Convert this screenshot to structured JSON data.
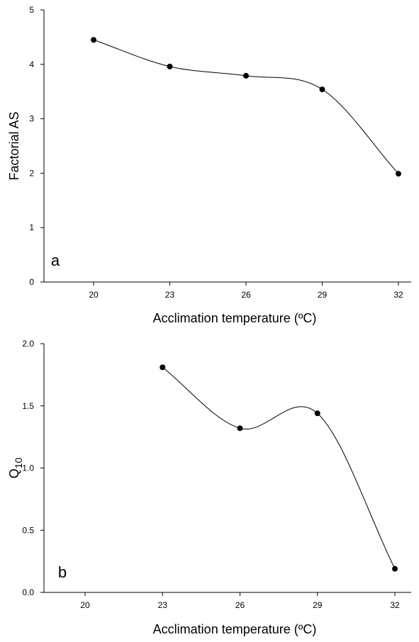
{
  "chart_data": [
    {
      "type": "line",
      "panel_label": "a",
      "x": [
        "20",
        "23",
        "26",
        "29",
        "32"
      ],
      "series": [
        {
          "values": [
            4.45,
            3.96,
            3.79,
            3.54,
            1.99
          ]
        }
      ],
      "xlabel": "Acclimation temperature (ºC)",
      "ylabel": "Factorial AS",
      "ylim": [
        0,
        5
      ],
      "yticks": [
        "0",
        "1",
        "2",
        "3",
        "4",
        "5"
      ],
      "grid": false,
      "curve": "smooth"
    },
    {
      "type": "line",
      "panel_label": "b",
      "x": [
        "20",
        "23",
        "26",
        "29",
        "32"
      ],
      "series": [
        {
          "values": [
            null,
            1.81,
            1.32,
            1.44,
            0.19
          ]
        }
      ],
      "xlabel": "Acclimation temperature (ºC)",
      "ylabel": "Q10",
      "ylabel_main": "Q",
      "ylabel_sub": "10",
      "ylim": [
        0,
        2
      ],
      "yticks": [
        "0.0",
        "0.5",
        "1.0",
        "1.5",
        "2.0"
      ],
      "grid": false,
      "curve": "smooth"
    }
  ]
}
